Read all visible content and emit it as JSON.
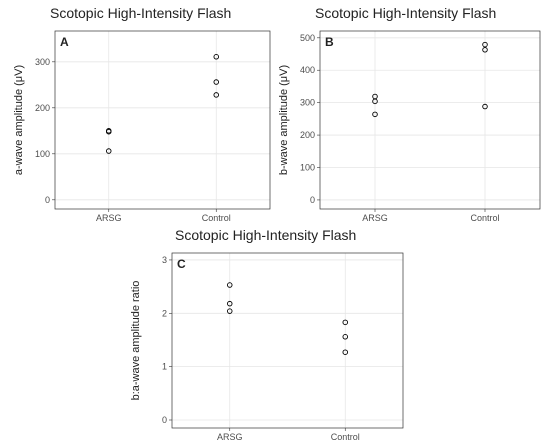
{
  "chart_data": [
    {
      "type": "scatter",
      "title": "Scotopic High-Intensity Flash",
      "panel_label": "A",
      "y_label": "a-wave amplitude (μV)",
      "categories": [
        "ARSG",
        "Control"
      ],
      "values": [
        [
          150,
          148,
          106
        ],
        [
          311,
          256,
          228
        ]
      ],
      "ylim": [
        -20,
        367
      ],
      "yticks": [
        0,
        100,
        200,
        300
      ],
      "grid": true
    },
    {
      "type": "scatter",
      "title": "Scotopic High-Intensity Flash",
      "panel_label": "B",
      "y_label": "b-wave amplitude (μV)",
      "categories": [
        "ARSG",
        "Control"
      ],
      "values": [
        [
          319,
          304,
          264
        ],
        [
          479,
          463,
          288
        ]
      ],
      "ylim": [
        -28,
        521
      ],
      "yticks": [
        0,
        100,
        200,
        300,
        400,
        500
      ],
      "grid": true
    },
    {
      "type": "scatter",
      "title": "Scotopic High-Intensity Flash",
      "panel_label": "C",
      "y_label": "b:a-wave amplitude ratio",
      "categories": [
        "ARSG",
        "Control"
      ],
      "values": [
        [
          2.53,
          2.18,
          2.04
        ],
        [
          1.83,
          1.56,
          1.27
        ]
      ],
      "ylim": [
        -0.15,
        3.13
      ],
      "yticks": [
        0,
        1,
        2,
        3
      ],
      "grid": true
    }
  ]
}
